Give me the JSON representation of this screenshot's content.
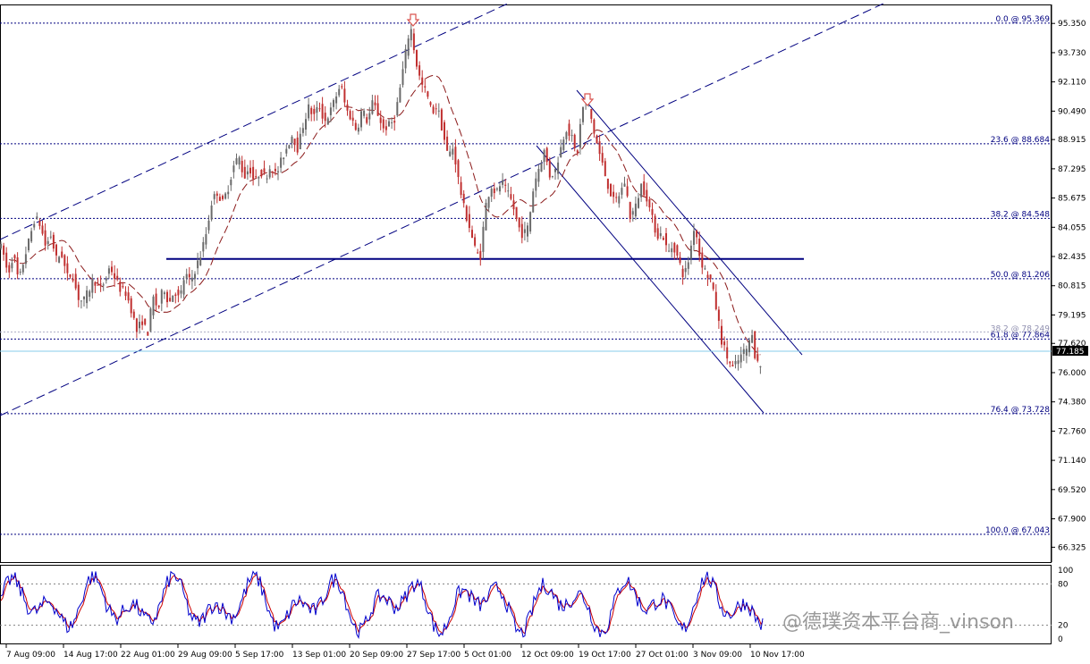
{
  "colors": {
    "background": "#ffffff",
    "bull_candle": "#6a6a6a",
    "bear_candle": "#c03030",
    "channel": "#000080",
    "ma": "#8b1a1a",
    "fib": "#000080",
    "price_line": "#87ceeb",
    "stoch_main": "#0000cd",
    "stoch_signal": "#cc0000",
    "arrow": "#d9534f",
    "watermark": "#9a9a9a"
  },
  "watermark": "@德璞资本平台商_vinson",
  "chart_data": {
    "type": "candlestick",
    "ylim": [
      65.5,
      96.4
    ],
    "y_ticks": [
      "95.350",
      "93.730",
      "92.110",
      "90.490",
      "88.915",
      "87.295",
      "85.675",
      "84.055",
      "82.435",
      "80.815",
      "79.195",
      "77.620",
      "76.000",
      "74.380",
      "72.760",
      "71.140",
      "69.520",
      "67.900",
      "66.325"
    ],
    "x_ticks": [
      "7 Aug 09:00",
      "14 Aug 17:00",
      "22 Aug 01:00",
      "29 Aug 09:00",
      "5 Sep 17:00",
      "13 Sep 01:00",
      "20 Sep 09:00",
      "27 Sep 17:00",
      "5 Oct 01:00",
      "12 Oct 09:00",
      "19 Oct 17:00",
      "27 Oct 01:00",
      "3 Nov 09:00",
      "10 Nov 17:00"
    ],
    "current_price": "77.185",
    "current_value": 77.185,
    "fib_levels": [
      {
        "label": "0.0 @ 95.369",
        "value": 95.369
      },
      {
        "label": "23.6 @ 88.684",
        "value": 88.684
      },
      {
        "label": "38.2 @ 84.548",
        "value": 84.548
      },
      {
        "label": "50.0 @ 81.206",
        "value": 81.206
      },
      {
        "label": "61.8 @ 77.864",
        "value": 77.864
      },
      {
        "label": "76.4 @ 73.728",
        "value": 73.728
      },
      {
        "label": "100.0 @ 67.043",
        "value": 67.043
      }
    ],
    "fib_faint": {
      "label": "38.2 @ 78.249",
      "value": 78.249
    },
    "horizontal_level": 82.3,
    "price_anchors": [
      [
        0,
        83.2
      ],
      [
        6,
        82.8
      ],
      [
        12,
        81.4
      ],
      [
        18,
        82.6
      ],
      [
        24,
        81.0
      ],
      [
        30,
        82.3
      ],
      [
        36,
        83.4
      ],
      [
        42,
        84.6
      ],
      [
        48,
        84.2
      ],
      [
        54,
        83.0
      ],
      [
        60,
        83.6
      ],
      [
        66,
        82.3
      ],
      [
        72,
        82.6
      ],
      [
        78,
        81.3
      ],
      [
        84,
        81.5
      ],
      [
        90,
        80.2
      ],
      [
        96,
        79.9
      ],
      [
        102,
        80.5
      ],
      [
        108,
        81.2
      ],
      [
        114,
        80.6
      ],
      [
        120,
        81.0
      ],
      [
        126,
        81.9
      ],
      [
        132,
        81.2
      ],
      [
        138,
        80.6
      ],
      [
        144,
        80.4
      ],
      [
        150,
        79.5
      ],
      [
        156,
        78.3
      ],
      [
        162,
        78.9
      ],
      [
        168,
        78.1
      ],
      [
        174,
        80.2
      ],
      [
        180,
        79.5
      ],
      [
        186,
        80.8
      ],
      [
        192,
        79.8
      ],
      [
        198,
        80.6
      ],
      [
        204,
        80.0
      ],
      [
        210,
        81.5
      ],
      [
        216,
        81.0
      ],
      [
        222,
        81.8
      ],
      [
        228,
        82.6
      ],
      [
        234,
        83.8
      ],
      [
        240,
        85.5
      ],
      [
        246,
        86.0
      ],
      [
        252,
        85.4
      ],
      [
        258,
        86.2
      ],
      [
        264,
        87.4
      ],
      [
        270,
        88.0
      ],
      [
        276,
        86.8
      ],
      [
        282,
        87.4
      ],
      [
        288,
        86.5
      ],
      [
        294,
        87.2
      ],
      [
        300,
        86.8
      ],
      [
        306,
        87.5
      ],
      [
        312,
        86.9
      ],
      [
        318,
        87.8
      ],
      [
        324,
        88.5
      ],
      [
        330,
        89.2
      ],
      [
        336,
        88.4
      ],
      [
        342,
        89.7
      ],
      [
        348,
        90.7
      ],
      [
        354,
        90.2
      ],
      [
        360,
        90.8
      ],
      [
        366,
        89.9
      ],
      [
        372,
        90.4
      ],
      [
        378,
        91.2
      ],
      [
        384,
        92.0
      ],
      [
        390,
        90.6
      ],
      [
        396,
        90.1
      ],
      [
        402,
        89.4
      ],
      [
        408,
        90.6
      ],
      [
        414,
        89.9
      ],
      [
        420,
        91.0
      ],
      [
        426,
        90.3
      ],
      [
        432,
        89.5
      ],
      [
        438,
        89.7
      ],
      [
        444,
        90.0
      ],
      [
        450,
        91.6
      ],
      [
        456,
        93.5
      ],
      [
        462,
        95.3
      ],
      [
        468,
        93.3
      ],
      [
        474,
        92.0
      ],
      [
        480,
        91.5
      ],
      [
        486,
        90.4
      ],
      [
        492,
        90.8
      ],
      [
        498,
        89.4
      ],
      [
        504,
        88.0
      ],
      [
        510,
        88.5
      ],
      [
        516,
        86.6
      ],
      [
        522,
        85.1
      ],
      [
        528,
        84.1
      ],
      [
        534,
        82.9
      ],
      [
        540,
        82.3
      ],
      [
        546,
        85.2
      ],
      [
        552,
        86.4
      ],
      [
        558,
        85.9
      ],
      [
        564,
        86.6
      ],
      [
        570,
        86.0
      ],
      [
        576,
        85.4
      ],
      [
        582,
        84.2
      ],
      [
        588,
        83.6
      ],
      [
        594,
        84.1
      ],
      [
        600,
        86.4
      ],
      [
        606,
        87.4
      ],
      [
        612,
        88.3
      ],
      [
        618,
        86.9
      ],
      [
        624,
        87.2
      ],
      [
        630,
        88.4
      ],
      [
        636,
        89.6
      ],
      [
        642,
        89.1
      ],
      [
        648,
        87.9
      ],
      [
        654,
        90.6
      ],
      [
        660,
        91.2
      ],
      [
        666,
        89.6
      ],
      [
        672,
        88.4
      ],
      [
        678,
        87.3
      ],
      [
        684,
        86.2
      ],
      [
        690,
        85.4
      ],
      [
        696,
        85.9
      ],
      [
        702,
        86.6
      ],
      [
        708,
        84.6
      ],
      [
        714,
        85.2
      ],
      [
        720,
        86.4
      ],
      [
        726,
        85.8
      ],
      [
        732,
        84.6
      ],
      [
        738,
        83.6
      ],
      [
        744,
        83.7
      ],
      [
        750,
        82.6
      ],
      [
        756,
        83.1
      ],
      [
        762,
        82.2
      ],
      [
        768,
        81.3
      ],
      [
        774,
        82.4
      ],
      [
        780,
        84.3
      ],
      [
        786,
        82.3
      ],
      [
        792,
        81.6
      ],
      [
        798,
        81.1
      ],
      [
        804,
        79.6
      ],
      [
        810,
        77.8
      ],
      [
        816,
        76.9
      ],
      [
        822,
        76.2
      ],
      [
        828,
        76.6
      ],
      [
        834,
        77.1
      ],
      [
        840,
        77.4
      ],
      [
        844,
        78.4
      ],
      [
        848,
        76.7
      ],
      [
        853,
        76.4
      ]
    ],
    "stochastic": {
      "ylim": [
        0,
        100
      ],
      "ticks": [
        "100",
        "80",
        "20",
        "0"
      ],
      "levels": [
        80,
        20
      ]
    }
  }
}
